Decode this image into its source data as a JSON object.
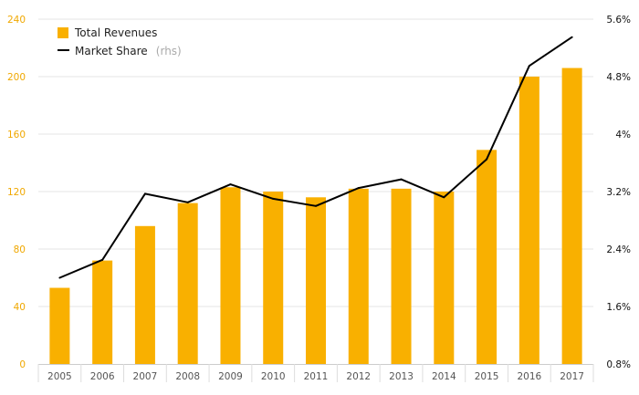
{
  "chart_data": {
    "type": "bar",
    "categories": [
      "2005",
      "2006",
      "2007",
      "2008",
      "2009",
      "2010",
      "2011",
      "2012",
      "2013",
      "2014",
      "2015",
      "2016",
      "2017"
    ],
    "series": [
      {
        "name": "Total Revenues",
        "type": "bar",
        "axis": "left",
        "values": [
          53,
          72,
          96,
          112,
          123,
          120,
          116,
          122,
          122,
          120,
          149,
          200,
          206
        ]
      },
      {
        "name": "Market Share",
        "type": "line",
        "axis": "right",
        "values": [
          2.0,
          2.25,
          3.17,
          3.05,
          3.3,
          3.1,
          3.0,
          3.25,
          3.37,
          3.12,
          3.65,
          4.95,
          5.35
        ]
      }
    ],
    "legend": {
      "bar_label": "Total Revenues",
      "line_label": "Market Share",
      "line_suffix": "(rhs)",
      "placement": "top-left"
    },
    "ylim": [
      0,
      240
    ],
    "y_ticks": [
      "0",
      "40",
      "80",
      "120",
      "160",
      "200",
      "240"
    ],
    "y2lim": [
      0.8,
      5.6
    ],
    "y2_ticks": [
      "0.8%",
      "1.6%",
      "2.4%",
      "3.2%",
      "4%",
      "4.8%",
      "5.6%"
    ],
    "grid": true,
    "colors": {
      "bar": "#F9B000",
      "line": "#000000",
      "left_tick": "#F0A800",
      "right_tick": "#111111",
      "grid": "#E6E6E6"
    }
  }
}
